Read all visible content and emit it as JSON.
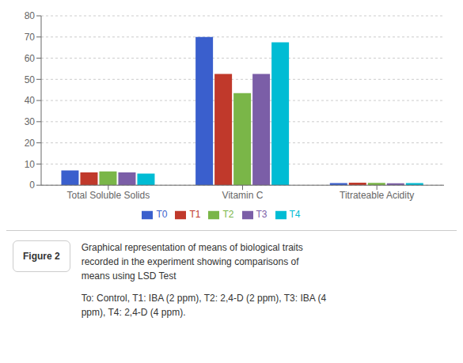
{
  "chart_data": {
    "type": "bar",
    "categories": [
      "Total Soluble Solids",
      "Vitamin C",
      "Titrateable Acidity"
    ],
    "series": [
      {
        "name": "T0",
        "color": "#3a5fcd",
        "values": [
          7.0,
          70.0,
          1.0
        ]
      },
      {
        "name": "T1",
        "color": "#c0392b",
        "values": [
          6.0,
          52.5,
          1.2
        ]
      },
      {
        "name": "T2",
        "color": "#7ab648",
        "values": [
          6.5,
          43.5,
          1.1
        ]
      },
      {
        "name": "T3",
        "color": "#7b5ea7",
        "values": [
          6.0,
          52.5,
          0.9
        ]
      },
      {
        "name": "T4",
        "color": "#00bcd4",
        "values": [
          5.5,
          67.5,
          1.0
        ]
      }
    ],
    "ylim": [
      0,
      80
    ],
    "yticks": [
      0,
      10,
      20,
      30,
      40,
      50,
      60,
      70,
      80
    ],
    "grid": true,
    "legend": "bottom",
    "annotations": [
      "Figure 2",
      "Graphical representation of means of biological traits",
      "recorded in the experiment showing comparisons of",
      "means using LSD Test",
      "To: Control, T1: IBA (2 ppm), T2: 2,4-D (2 ppm), T3: IBA (4",
      "ppm), T4: 2,4-D (4 ppm)."
    ]
  }
}
